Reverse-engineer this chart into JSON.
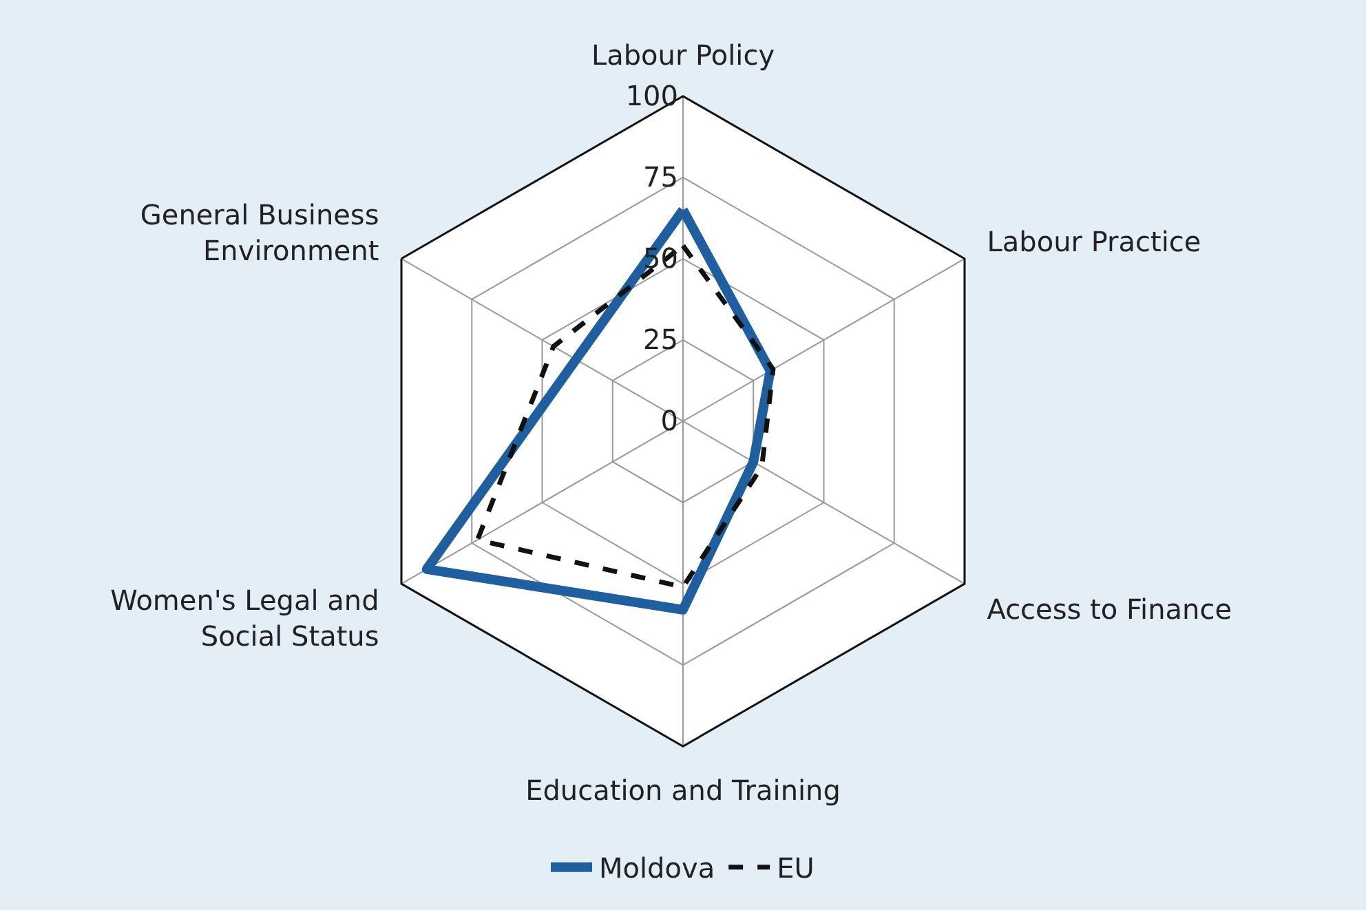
{
  "chart_data": {
    "type": "radar",
    "categories": [
      "Labour Policy",
      "Labour Practice",
      "Access to Finance",
      "Education and Training",
      "Women's Legal and Social Status",
      "General Business Environment"
    ],
    "series": [
      {
        "name": "Moldova",
        "color": "#1f5fa0",
        "line_style": "solid",
        "values": [
          65,
          31,
          25,
          58,
          91,
          38
        ]
      },
      {
        "name": "EU",
        "color": "#111111",
        "line_style": "dashed",
        "values": [
          54,
          32,
          28,
          51,
          73,
          46
        ]
      }
    ],
    "ylim": [
      0,
      100
    ],
    "yticks": [
      0,
      25,
      50,
      75,
      100
    ],
    "grid": true,
    "legend": "bottom",
    "marker": "none"
  }
}
